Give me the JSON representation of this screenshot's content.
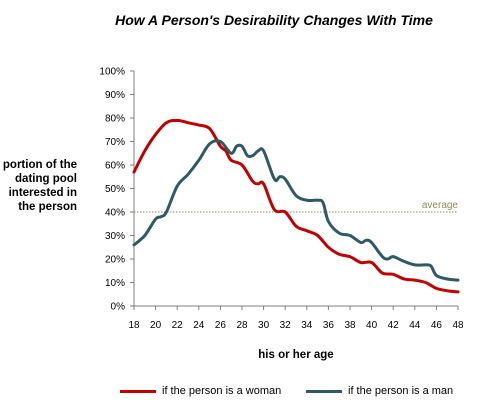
{
  "chart_data": {
    "type": "line",
    "title": "How A Person's Desirability Changes  With Time",
    "xlabel": "his or her age",
    "ylabel_lines": [
      "portion of the",
      "dating pool",
      "interested in",
      "the person"
    ],
    "xlim": [
      18,
      48
    ],
    "ylim": [
      0,
      100
    ],
    "x_ticks": [
      "18",
      "20",
      "22",
      "24",
      "26",
      "28",
      "30",
      "32",
      "34",
      "36",
      "38",
      "40",
      "42",
      "44",
      "46",
      "48"
    ],
    "y_ticks": [
      "0%",
      "10%",
      "20%",
      "30%",
      "40%",
      "50%",
      "60%",
      "70%",
      "80%",
      "90%",
      "100%"
    ],
    "reference_line": {
      "label": "average",
      "value": 40,
      "color": "#8a8a5a"
    },
    "grid": false,
    "legend_position": "bottom",
    "series": [
      {
        "name": "if the person is a woman",
        "color": "#c00000",
        "x": [
          18,
          19,
          20,
          21,
          22,
          23,
          24,
          25,
          26,
          26.5,
          27,
          28,
          29,
          29.5,
          30,
          31,
          32,
          33,
          34,
          35,
          36,
          37,
          38,
          39,
          40,
          41,
          42,
          43,
          44,
          45,
          46,
          47,
          48
        ],
        "y": [
          57,
          66,
          73,
          78,
          79,
          78,
          77,
          75.5,
          68,
          66,
          62,
          60,
          53,
          52,
          52,
          41,
          40,
          34,
          32,
          30,
          25,
          22,
          21,
          18.5,
          18.5,
          14,
          13.5,
          11.5,
          11,
          10,
          7.5,
          6.5,
          6
        ]
      },
      {
        "name": "if the person is a man",
        "color": "#2f5a64",
        "x": [
          18,
          19,
          20,
          20.5,
          21,
          22,
          23,
          24,
          25,
          26,
          27,
          27.5,
          28,
          28.5,
          29,
          29.5,
          30,
          31,
          31.5,
          32,
          33,
          34,
          35,
          35.5,
          36,
          37,
          38,
          39,
          39.5,
          40,
          41,
          41.5,
          42,
          43,
          44,
          45,
          45.5,
          46,
          47,
          48
        ],
        "y": [
          26,
          30,
          37,
          38,
          40,
          51,
          56,
          62,
          69,
          70,
          65,
          68,
          68,
          64,
          64,
          66,
          66,
          54,
          55,
          54,
          47,
          45,
          45,
          44,
          36,
          31,
          30,
          27,
          28,
          27,
          21,
          20,
          21,
          19,
          17.5,
          17.5,
          17,
          13,
          11.5,
          11
        ]
      }
    ]
  }
}
